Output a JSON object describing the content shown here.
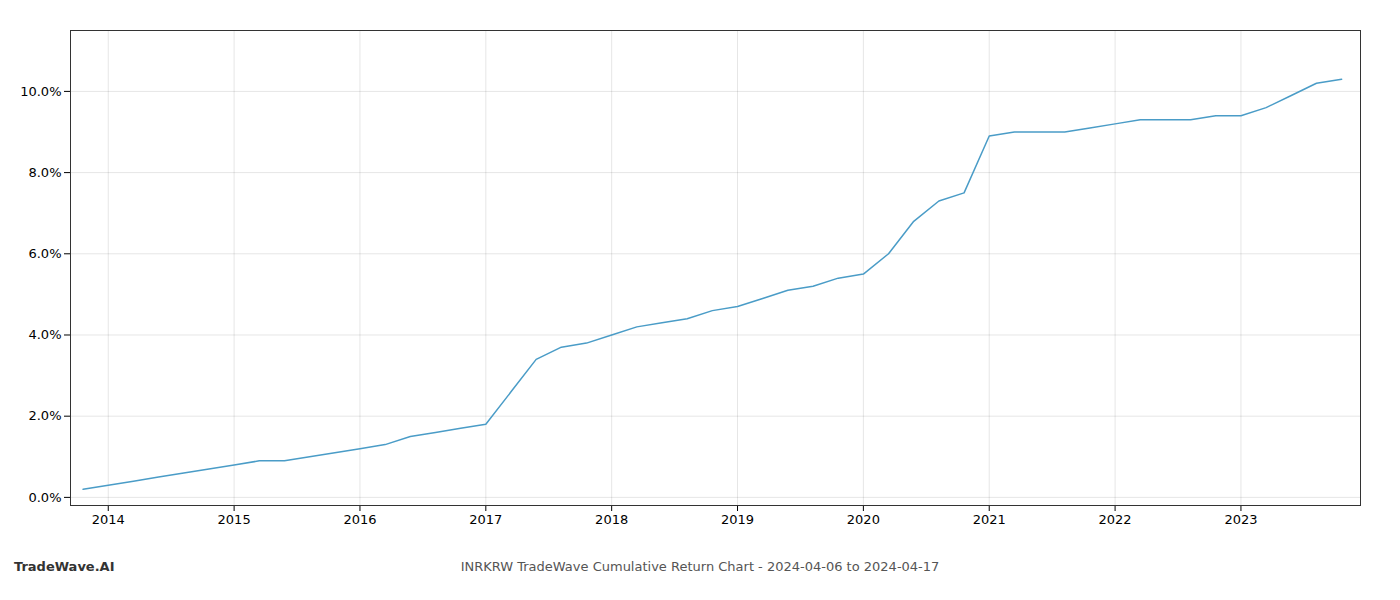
{
  "chart_data": {
    "type": "line",
    "title": "INRKRW TradeWave Cumulative Return Chart - 2024-04-06 to 2024-04-17",
    "annotations": [
      "TradeWave.AI"
    ],
    "color": "#4a9cc7",
    "grid": true,
    "x": [
      2013.8,
      2014.0,
      2014.2,
      2014.4,
      2014.6,
      2014.8,
      2015.0,
      2015.2,
      2015.4,
      2015.6,
      2015.8,
      2016.0,
      2016.2,
      2016.4,
      2016.6,
      2016.8,
      2017.0,
      2017.2,
      2017.4,
      2017.6,
      2017.8,
      2018.0,
      2018.2,
      2018.4,
      2018.6,
      2018.8,
      2019.0,
      2019.2,
      2019.4,
      2019.6,
      2019.8,
      2020.0,
      2020.2,
      2020.4,
      2020.6,
      2020.8,
      2021.0,
      2021.2,
      2021.4,
      2021.6,
      2021.8,
      2022.0,
      2022.2,
      2022.4,
      2022.6,
      2022.8,
      2023.0,
      2023.2,
      2023.4,
      2023.6,
      2023.8
    ],
    "values": [
      0.002,
      0.003,
      0.004,
      0.005,
      0.006,
      0.007,
      0.008,
      0.009,
      0.009,
      0.01,
      0.011,
      0.012,
      0.013,
      0.015,
      0.016,
      0.017,
      0.018,
      0.026,
      0.034,
      0.037,
      0.038,
      0.04,
      0.042,
      0.043,
      0.044,
      0.046,
      0.047,
      0.049,
      0.051,
      0.052,
      0.054,
      0.055,
      0.06,
      0.068,
      0.073,
      0.075,
      0.089,
      0.09,
      0.09,
      0.09,
      0.091,
      0.092,
      0.093,
      0.093,
      0.093,
      0.094,
      0.094,
      0.096,
      0.099,
      0.102,
      0.103
    ],
    "xlim": [
      2013.7,
      2023.95
    ],
    "xticks": [
      2014,
      2015,
      2016,
      2017,
      2018,
      2019,
      2020,
      2021,
      2022,
      2023
    ],
    "ylim": [
      -0.002,
      0.115
    ],
    "yticks": [
      {
        "value": 0.0,
        "label": "0.0%"
      },
      {
        "value": 0.02,
        "label": "2.0%"
      },
      {
        "value": 0.04,
        "label": "4.0%"
      },
      {
        "value": 0.06,
        "label": "6.0%"
      },
      {
        "value": 0.08,
        "label": "8.0%"
      },
      {
        "value": 0.1,
        "label": "10.0%"
      }
    ]
  }
}
